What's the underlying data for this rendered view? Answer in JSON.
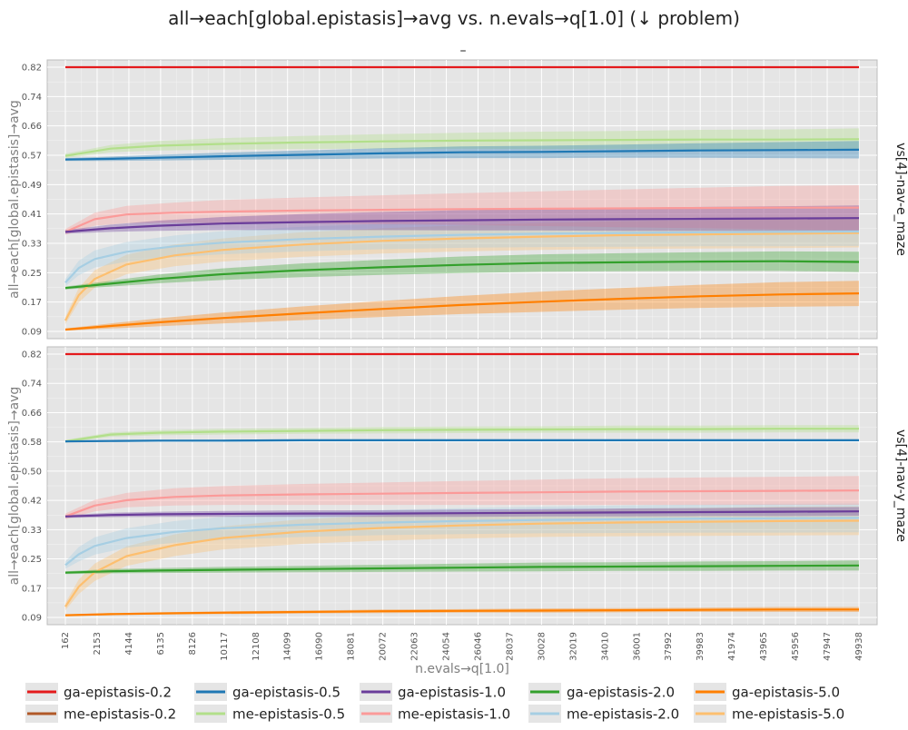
{
  "title": "all→each[global.epistasis]→avg vs. n.evals→q[1.0] (↓ problem)",
  "colors": {
    "panel_bg": "#e5e5e5",
    "grid": "#ffffff",
    "tick_text": "#555555",
    "axis_label": "#7f7f7f"
  },
  "chart_data": [
    {
      "type": "line",
      "panel_label": "vs[4]-nav-e_maze",
      "subtitle": "–",
      "xlabel": "",
      "ylabel": "all→each[global.epistasis]→avg",
      "xlim": [
        162,
        49938
      ],
      "ylim": [
        0.09,
        0.82
      ],
      "yticks": [
        "0.09",
        "0.17",
        "0.25",
        "0.33",
        "0.41",
        "0.49",
        "0.57",
        "0.66",
        "0.74",
        "0.82"
      ],
      "grid": true,
      "series": [
        {
          "name": "ga-epistasis-0.2",
          "color": "#e41a1c",
          "x": [
            162,
            3000,
            6000,
            10000,
            15000,
            20000,
            25000,
            30000,
            35000,
            40000,
            45000,
            49938
          ],
          "y": [
            0.82,
            0.82,
            0.82,
            0.82,
            0.82,
            0.82,
            0.82,
            0.82,
            0.82,
            0.82,
            0.82,
            0.82
          ],
          "band": [
            0.0,
            0.0,
            0.0,
            0.0,
            0.0,
            0.0,
            0.0,
            0.0,
            0.0,
            0.0,
            0.0,
            0.0
          ]
        },
        {
          "name": "ga-epistasis-0.5",
          "color": "#1f78b4",
          "x": [
            162,
            3000,
            6000,
            10000,
            15000,
            20000,
            25000,
            30000,
            35000,
            40000,
            45000,
            49938
          ],
          "y": [
            0.565,
            0.567,
            0.57,
            0.574,
            0.578,
            0.582,
            0.585,
            0.586,
            0.588,
            0.59,
            0.591,
            0.592
          ],
          "band": [
            0.004,
            0.006,
            0.008,
            0.01,
            0.012,
            0.014,
            0.016,
            0.017,
            0.018,
            0.02,
            0.022,
            0.024
          ]
        },
        {
          "name": "ga-epistasis-1.0",
          "color": "#6a3d9a",
          "x": [
            162,
            3000,
            6000,
            10000,
            15000,
            20000,
            25000,
            30000,
            35000,
            40000,
            45000,
            49938
          ],
          "y": [
            0.365,
            0.375,
            0.382,
            0.388,
            0.392,
            0.395,
            0.397,
            0.399,
            0.4,
            0.401,
            0.402,
            0.403
          ],
          "band": [
            0.005,
            0.01,
            0.014,
            0.018,
            0.022,
            0.025,
            0.028,
            0.03,
            0.032,
            0.033,
            0.034,
            0.035
          ]
        },
        {
          "name": "ga-epistasis-2.0",
          "color": "#33a02c",
          "x": [
            162,
            3000,
            6000,
            10000,
            15000,
            20000,
            25000,
            30000,
            35000,
            40000,
            45000,
            49938
          ],
          "y": [
            0.21,
            0.222,
            0.235,
            0.248,
            0.259,
            0.267,
            0.274,
            0.279,
            0.281,
            0.283,
            0.284,
            0.282
          ],
          "band": [
            0.004,
            0.008,
            0.012,
            0.016,
            0.019,
            0.021,
            0.023,
            0.024,
            0.025,
            0.026,
            0.027,
            0.028
          ]
        },
        {
          "name": "ga-epistasis-5.0",
          "color": "#ff7f00",
          "x": [
            162,
            3000,
            6000,
            10000,
            15000,
            20000,
            25000,
            30000,
            35000,
            40000,
            45000,
            49938
          ],
          "y": [
            0.095,
            0.105,
            0.115,
            0.127,
            0.14,
            0.152,
            0.163,
            0.172,
            0.18,
            0.187,
            0.192,
            0.195
          ],
          "band": [
            0.003,
            0.007,
            0.011,
            0.015,
            0.019,
            0.022,
            0.025,
            0.028,
            0.03,
            0.032,
            0.034,
            0.035
          ]
        },
        {
          "name": "me-epistasis-0.2",
          "color": "#b15928",
          "x": [],
          "y": [],
          "band": []
        },
        {
          "name": "me-epistasis-0.5",
          "color": "#b2df8a",
          "x": [
            162,
            3000,
            6000,
            10000,
            15000,
            20000,
            25000,
            30000,
            35000,
            40000,
            45000,
            49938
          ],
          "y": [
            0.575,
            0.595,
            0.603,
            0.608,
            0.612,
            0.615,
            0.617,
            0.618,
            0.619,
            0.62,
            0.62,
            0.621
          ],
          "band": [
            0.006,
            0.01,
            0.013,
            0.016,
            0.018,
            0.02,
            0.022,
            0.024,
            0.025,
            0.027,
            0.028,
            0.03
          ]
        },
        {
          "name": "me-epistasis-1.0",
          "color": "#fb9a99",
          "x": [
            162,
            2000,
            4000,
            7000,
            10000,
            15000,
            20000,
            25000,
            30000,
            35000,
            40000,
            45000,
            49938
          ],
          "y": [
            0.365,
            0.4,
            0.413,
            0.418,
            0.421,
            0.424,
            0.426,
            0.428,
            0.429,
            0.43,
            0.431,
            0.432,
            0.432
          ],
          "band": [
            0.008,
            0.018,
            0.024,
            0.028,
            0.032,
            0.036,
            0.04,
            0.044,
            0.048,
            0.052,
            0.056,
            0.06,
            0.062
          ]
        },
        {
          "name": "me-epistasis-2.0",
          "color": "#a6cee3",
          "x": [
            162,
            1000,
            2000,
            4000,
            7000,
            10000,
            15000,
            20000,
            25000,
            30000,
            35000,
            40000,
            45000,
            49938
          ],
          "y": [
            0.225,
            0.265,
            0.29,
            0.31,
            0.325,
            0.335,
            0.345,
            0.352,
            0.357,
            0.36,
            0.362,
            0.364,
            0.365,
            0.366
          ],
          "band": [
            0.01,
            0.02,
            0.024,
            0.027,
            0.03,
            0.032,
            0.034,
            0.035,
            0.036,
            0.037,
            0.038,
            0.039,
            0.04,
            0.04
          ]
        },
        {
          "name": "me-epistasis-5.0",
          "color": "#fdbf6f",
          "x": [
            162,
            1000,
            2000,
            4000,
            7000,
            10000,
            15000,
            20000,
            25000,
            30000,
            35000,
            40000,
            45000,
            49938
          ],
          "y": [
            0.12,
            0.19,
            0.235,
            0.275,
            0.3,
            0.315,
            0.33,
            0.34,
            0.347,
            0.352,
            0.356,
            0.358,
            0.36,
            0.362
          ],
          "band": [
            0.01,
            0.02,
            0.024,
            0.027,
            0.03,
            0.032,
            0.034,
            0.035,
            0.036,
            0.037,
            0.038,
            0.039,
            0.04,
            0.04
          ]
        }
      ]
    },
    {
      "type": "line",
      "panel_label": "vs[4]-nav-y_maze",
      "subtitle": "",
      "xlabel": "n.evals→q[1.0]",
      "ylabel": "all→each[global.epistasis]→avg",
      "xlim": [
        162,
        49938
      ],
      "ylim": [
        0.09,
        0.82
      ],
      "yticks": [
        "0.09",
        "0.17",
        "0.25",
        "0.33",
        "0.42",
        "0.50",
        "0.58",
        "0.66",
        "0.74",
        "0.82"
      ],
      "xticks": [
        "162",
        "2153",
        "4144",
        "6135",
        "8126",
        "10117",
        "12108",
        "14099",
        "16090",
        "18081",
        "20072",
        "22063",
        "24054",
        "26046",
        "28037",
        "30028",
        "32019",
        "34010",
        "36001",
        "37992",
        "39983",
        "41974",
        "43965",
        "45956",
        "47947",
        "49938"
      ],
      "grid": true,
      "series": [
        {
          "name": "ga-epistasis-0.2",
          "color": "#e41a1c",
          "x": [
            162,
            3000,
            6000,
            10000,
            15000,
            20000,
            25000,
            30000,
            35000,
            40000,
            45000,
            49938
          ],
          "y": [
            0.82,
            0.82,
            0.82,
            0.82,
            0.82,
            0.82,
            0.82,
            0.82,
            0.82,
            0.82,
            0.82,
            0.82
          ],
          "band": [
            0.0,
            0.0,
            0.0,
            0.0,
            0.0,
            0.0,
            0.0,
            0.0,
            0.0,
            0.0,
            0.0,
            0.0
          ]
        },
        {
          "name": "ga-epistasis-0.5",
          "color": "#1f78b4",
          "x": [
            162,
            3000,
            6000,
            10000,
            15000,
            20000,
            25000,
            30000,
            35000,
            40000,
            45000,
            49938
          ],
          "y": [
            0.578,
            0.579,
            0.58,
            0.58,
            0.581,
            0.581,
            0.581,
            0.581,
            0.581,
            0.581,
            0.581,
            0.581
          ],
          "band": [
            0.002,
            0.003,
            0.003,
            0.003,
            0.003,
            0.003,
            0.003,
            0.003,
            0.003,
            0.003,
            0.003,
            0.003
          ]
        },
        {
          "name": "ga-epistasis-1.0",
          "color": "#6a3d9a",
          "x": [
            162,
            3000,
            6000,
            10000,
            15000,
            20000,
            25000,
            30000,
            35000,
            40000,
            45000,
            49938
          ],
          "y": [
            0.37,
            0.374,
            0.376,
            0.377,
            0.378,
            0.378,
            0.379,
            0.38,
            0.381,
            0.382,
            0.383,
            0.384
          ],
          "band": [
            0.004,
            0.006,
            0.007,
            0.008,
            0.009,
            0.009,
            0.01,
            0.01,
            0.011,
            0.011,
            0.012,
            0.012
          ]
        },
        {
          "name": "ga-epistasis-2.0",
          "color": "#33a02c",
          "x": [
            162,
            3000,
            6000,
            10000,
            15000,
            20000,
            25000,
            30000,
            35000,
            40000,
            45000,
            49938
          ],
          "y": [
            0.214,
            0.218,
            0.22,
            0.222,
            0.224,
            0.226,
            0.228,
            0.23,
            0.231,
            0.232,
            0.233,
            0.234
          ],
          "band": [
            0.004,
            0.006,
            0.007,
            0.008,
            0.009,
            0.01,
            0.011,
            0.012,
            0.012,
            0.013,
            0.013,
            0.014
          ]
        },
        {
          "name": "ga-epistasis-5.0",
          "color": "#ff7f00",
          "x": [
            162,
            3000,
            6000,
            10000,
            15000,
            20000,
            25000,
            30000,
            35000,
            40000,
            45000,
            49938
          ],
          "y": [
            0.096,
            0.099,
            0.101,
            0.103,
            0.105,
            0.107,
            0.108,
            0.109,
            0.11,
            0.111,
            0.112,
            0.112
          ],
          "band": [
            0.002,
            0.003,
            0.003,
            0.004,
            0.004,
            0.005,
            0.005,
            0.006,
            0.006,
            0.006,
            0.007,
            0.007
          ]
        },
        {
          "name": "me-epistasis-0.2",
          "color": "#b15928",
          "x": [],
          "y": [],
          "band": []
        },
        {
          "name": "me-epistasis-0.5",
          "color": "#b2df8a",
          "x": [
            162,
            3000,
            6000,
            10000,
            15000,
            20000,
            25000,
            30000,
            35000,
            40000,
            45000,
            49938
          ],
          "y": [
            0.578,
            0.597,
            0.602,
            0.605,
            0.607,
            0.609,
            0.61,
            0.611,
            0.612,
            0.612,
            0.613,
            0.613
          ],
          "band": [
            0.004,
            0.006,
            0.007,
            0.008,
            0.008,
            0.009,
            0.009,
            0.009,
            0.01,
            0.01,
            0.01,
            0.01
          ]
        },
        {
          "name": "me-epistasis-1.0",
          "color": "#fb9a99",
          "x": [
            162,
            2000,
            4000,
            7000,
            10000,
            15000,
            20000,
            25000,
            30000,
            35000,
            40000,
            45000,
            49938
          ],
          "y": [
            0.37,
            0.4,
            0.415,
            0.424,
            0.428,
            0.431,
            0.433,
            0.435,
            0.437,
            0.439,
            0.44,
            0.441,
            0.442
          ],
          "band": [
            0.008,
            0.016,
            0.02,
            0.024,
            0.026,
            0.029,
            0.031,
            0.033,
            0.035,
            0.037,
            0.038,
            0.039,
            0.04
          ]
        },
        {
          "name": "me-epistasis-2.0",
          "color": "#a6cee3",
          "x": [
            162,
            1000,
            2000,
            4000,
            7000,
            10000,
            15000,
            20000,
            25000,
            30000,
            35000,
            40000,
            45000,
            49938
          ],
          "y": [
            0.235,
            0.265,
            0.288,
            0.31,
            0.327,
            0.337,
            0.347,
            0.353,
            0.357,
            0.36,
            0.362,
            0.364,
            0.365,
            0.366
          ],
          "band": [
            0.01,
            0.02,
            0.024,
            0.027,
            0.03,
            0.032,
            0.034,
            0.035,
            0.036,
            0.037,
            0.038,
            0.039,
            0.04,
            0.04
          ]
        },
        {
          "name": "me-epistasis-5.0",
          "color": "#fdbf6f",
          "x": [
            162,
            1000,
            2000,
            4000,
            7000,
            10000,
            15000,
            20000,
            25000,
            30000,
            35000,
            40000,
            45000,
            49938
          ],
          "y": [
            0.12,
            0.175,
            0.215,
            0.26,
            0.29,
            0.31,
            0.328,
            0.338,
            0.345,
            0.35,
            0.353,
            0.355,
            0.357,
            0.358
          ],
          "band": [
            0.01,
            0.02,
            0.024,
            0.027,
            0.03,
            0.032,
            0.034,
            0.035,
            0.036,
            0.037,
            0.038,
            0.039,
            0.04,
            0.04
          ]
        }
      ]
    }
  ],
  "legend": {
    "placement": "bottom",
    "items": [
      {
        "label": "ga-epistasis-0.2",
        "color": "#e41a1c"
      },
      {
        "label": "ga-epistasis-0.5",
        "color": "#1f78b4"
      },
      {
        "label": "ga-epistasis-1.0",
        "color": "#6a3d9a"
      },
      {
        "label": "ga-epistasis-2.0",
        "color": "#33a02c"
      },
      {
        "label": "ga-epistasis-5.0",
        "color": "#ff7f00"
      },
      {
        "label": "me-epistasis-0.2",
        "color": "#b15928"
      },
      {
        "label": "me-epistasis-0.5",
        "color": "#b2df8a"
      },
      {
        "label": "me-epistasis-1.0",
        "color": "#fb9a99"
      },
      {
        "label": "me-epistasis-2.0",
        "color": "#a6cee3"
      },
      {
        "label": "me-epistasis-5.0",
        "color": "#fdbf6f"
      }
    ]
  }
}
